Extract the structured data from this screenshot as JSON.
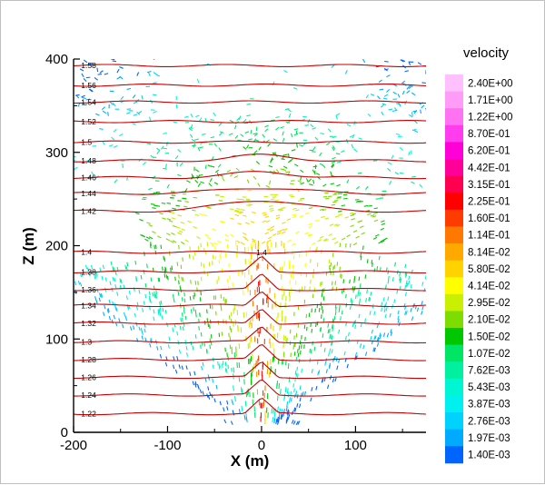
{
  "chart_data": {
    "type": "vector-contour",
    "title": "",
    "xlabel": "X (m)",
    "ylabel": "Z (m)",
    "xlim": [
      -200,
      175
    ],
    "ylim": [
      0,
      400
    ],
    "xticks": [
      -200,
      -100,
      0,
      100
    ],
    "yticks": [
      0,
      100,
      200,
      300,
      400
    ],
    "grid": false,
    "legend": {
      "title": "velocity",
      "placement": "right",
      "entries": [
        {
          "label": "2.40E+00",
          "color": "#ffc0ff"
        },
        {
          "label": "1.71E+00",
          "color": "#ff9cf8"
        },
        {
          "label": "1.22E+00",
          "color": "#ff73f3"
        },
        {
          "label": "8.70E-01",
          "color": "#ff3cee"
        },
        {
          "label": "6.20E-01",
          "color": "#ff00d8"
        },
        {
          "label": "4.42E-01",
          "color": "#ff0099"
        },
        {
          "label": "3.15E-01",
          "color": "#ff0050"
        },
        {
          "label": "2.25E-01",
          "color": "#ff0000"
        },
        {
          "label": "1.60E-01",
          "color": "#ff3c00"
        },
        {
          "label": "1.14E-01",
          "color": "#ff7800"
        },
        {
          "label": "8.14E-02",
          "color": "#ffa800"
        },
        {
          "label": "5.80E-02",
          "color": "#ffd200"
        },
        {
          "label": "4.14E-02",
          "color": "#ffff00"
        },
        {
          "label": "2.95E-02",
          "color": "#c8f000"
        },
        {
          "label": "2.10E-02",
          "color": "#7ddc00"
        },
        {
          "label": "1.50E-02",
          "color": "#00c800"
        },
        {
          "label": "1.07E-02",
          "color": "#00e664"
        },
        {
          "label": "7.62E-03",
          "color": "#00f0a0"
        },
        {
          "label": "5.43E-03",
          "color": "#00f5d2"
        },
        {
          "label": "3.87E-03",
          "color": "#00f0f0"
        },
        {
          "label": "2.76E-03",
          "color": "#00d2ff"
        },
        {
          "label": "1.97E-03",
          "color": "#00aaff"
        },
        {
          "label": "1.40E-03",
          "color": "#0064ff"
        }
      ]
    },
    "contours": [
      {
        "label": "1.22",
        "z": 20
      },
      {
        "label": "1.24",
        "z": 40
      },
      {
        "label": "1.26",
        "z": 59
      },
      {
        "label": "1.28",
        "z": 78
      },
      {
        "label": "1.3",
        "z": 97
      },
      {
        "label": "1.32",
        "z": 117
      },
      {
        "label": "1.34",
        "z": 136
      },
      {
        "label": "1.36",
        "z": 153
      },
      {
        "label": "1.38",
        "z": 172
      },
      {
        "label": "1.4",
        "z": 193
      },
      {
        "label": "1.42",
        "z": 237
      },
      {
        "label": "1.44",
        "z": 256
      },
      {
        "label": "1.46",
        "z": 273
      },
      {
        "label": "1.48",
        "z": 291
      },
      {
        "label": "1.5",
        "z": 311
      },
      {
        "label": "1.52",
        "z": 333
      },
      {
        "label": "1.54",
        "z": 354
      },
      {
        "label": "1.56",
        "z": 372
      },
      {
        "label": "1.58",
        "z": 393
      }
    ],
    "contour_color": "#c80000",
    "plume_source": {
      "x": 0,
      "z": 10
    },
    "plume_top_z": 250,
    "marker_label": "1.4"
  }
}
